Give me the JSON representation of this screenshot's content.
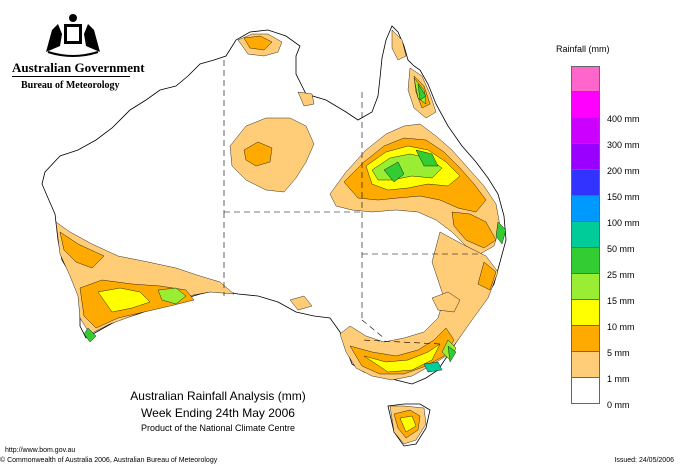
{
  "header": {
    "government": "Australian Government",
    "bureau": "Bureau of Meteorology"
  },
  "legend": {
    "title": "Rainfall (mm)",
    "classes": [
      {
        "label": "",
        "color": "#ff66cc"
      },
      {
        "label": "400 mm",
        "color": "#ff00ff"
      },
      {
        "label": "300 mm",
        "color": "#cc00ff"
      },
      {
        "label": "200 mm",
        "color": "#9900ff"
      },
      {
        "label": "150 mm",
        "color": "#3333ff"
      },
      {
        "label": "100 mm",
        "color": "#0099ff"
      },
      {
        "label": "50 mm",
        "color": "#00cc99"
      },
      {
        "label": "25 mm",
        "color": "#33cc33"
      },
      {
        "label": "15 mm",
        "color": "#99ee33"
      },
      {
        "label": "10 mm",
        "color": "#ffff00"
      },
      {
        "label": "5 mm",
        "color": "#ffaa00"
      },
      {
        "label": "1 mm",
        "color": "#ffcc77"
      },
      {
        "label": "0 mm",
        "color": "#ffffff"
      }
    ]
  },
  "caption": {
    "line1": "Australian Rainfall Analysis (mm)",
    "line2": "Week Ending 24th May 2006",
    "line3": "Product of the National Climate Centre"
  },
  "footer": {
    "url": "http://www.bom.gov.au",
    "copyright": "© Commonwealth of Australia 2006, Australian Bureau of Meteorology",
    "issued": "Issued: 24/05/2006"
  }
}
